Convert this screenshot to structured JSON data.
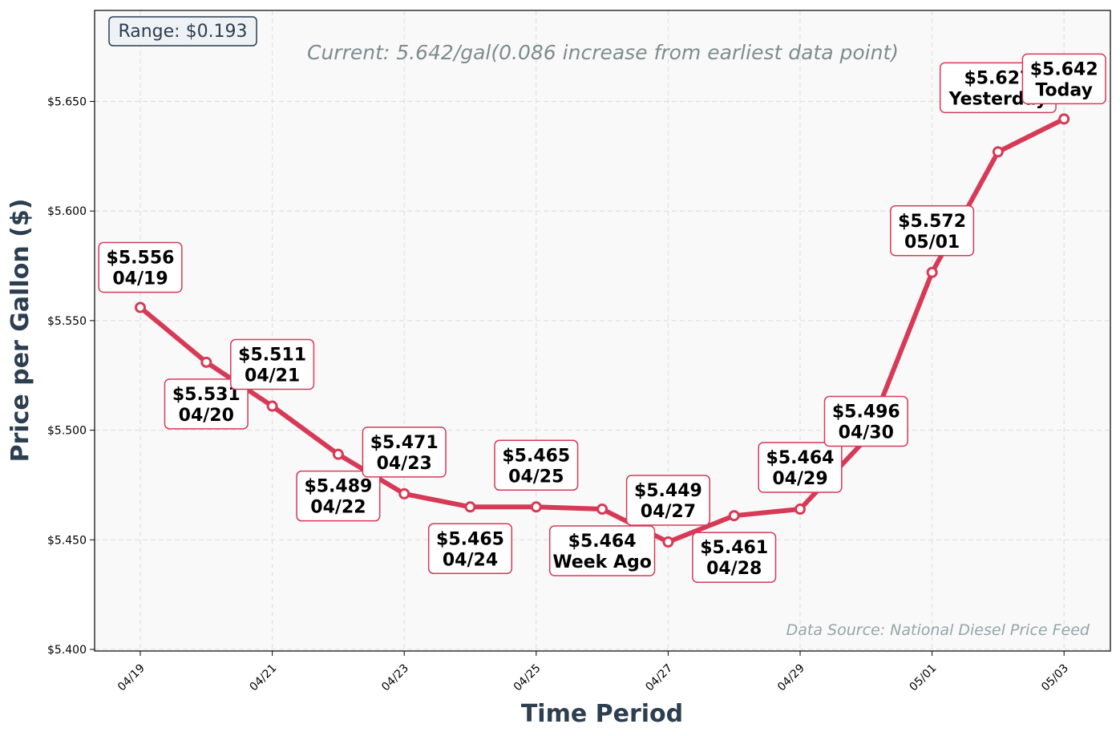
{
  "chart_data": {
    "type": "line",
    "x": [
      "04/19",
      "04/20",
      "04/21",
      "04/22",
      "04/23",
      "04/24",
      "04/25",
      "04/26",
      "04/27",
      "04/28",
      "04/29",
      "04/30",
      "05/01",
      "05/02",
      "05/03"
    ],
    "values": [
      5.556,
      5.531,
      5.511,
      5.489,
      5.471,
      5.465,
      5.465,
      5.464,
      5.449,
      5.461,
      5.464,
      5.496,
      5.572,
      5.627,
      5.642
    ],
    "point_labels": [
      [
        "$5.556",
        "04/19"
      ],
      [
        "$5.531",
        "04/20"
      ],
      [
        "$5.511",
        "04/21"
      ],
      [
        "$5.489",
        "04/22"
      ],
      [
        "$5.471",
        "04/23"
      ],
      [
        "$5.465",
        "04/24"
      ],
      [
        "$5.465",
        "04/25"
      ],
      [
        "$5.464",
        "Week Ago"
      ],
      [
        "$5.449",
        "04/27"
      ],
      [
        "$5.461",
        "04/28"
      ],
      [
        "$5.464",
        "04/29"
      ],
      [
        "$5.496",
        "04/30"
      ],
      [
        "$5.572",
        "05/01"
      ],
      [
        "$5.627",
        "Yesterday"
      ],
      [
        "$5.642",
        "Today"
      ]
    ],
    "xticks": [
      "04/19",
      "04/21",
      "04/23",
      "04/25",
      "04/27",
      "04/29",
      "05/01",
      "05/03"
    ],
    "yticks": [
      "$5.400",
      "$5.450",
      "$5.500",
      "$5.550",
      "$5.600",
      "$5.650"
    ],
    "ylim": [
      5.4,
      5.69
    ],
    "xlabel": "Time Period",
    "ylabel": "Price per Gallon ($)",
    "grid": true,
    "colors": {
      "line": "#d63a57",
      "marker_fill": "#ffffff",
      "plot_bg": "#f9f9f9",
      "label_border": "#d63a57"
    },
    "annotations": {
      "range": "Range: $0.193",
      "current": "Current: 5.642/gal(0.086 increase from earliest data point)",
      "source": "Data Source: National Diesel Price Feed"
    }
  }
}
